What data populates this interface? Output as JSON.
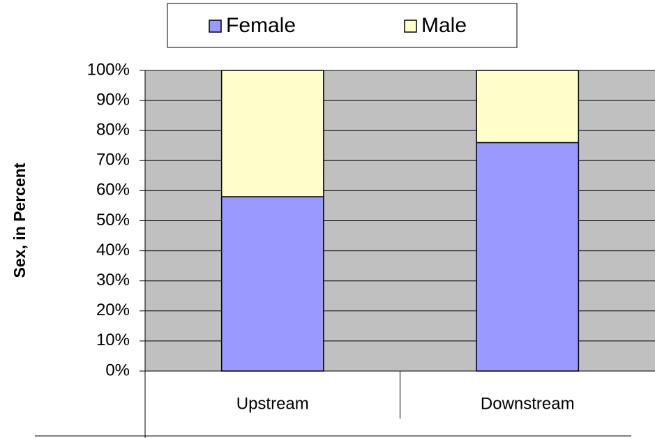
{
  "chart_data": {
    "type": "stacked_bar",
    "y_label": "Sex, in Percent",
    "categories": [
      "Upstream",
      "Downstream"
    ],
    "series": [
      {
        "name": "Female",
        "color": "#9999ff",
        "values": [
          58,
          76
        ]
      },
      {
        "name": "Male",
        "color": "#ffffcc",
        "values": [
          42,
          24
        ]
      }
    ],
    "ylim": [
      0,
      100
    ],
    "yticks": [
      {
        "value": 0,
        "label": "0%"
      },
      {
        "value": 10,
        "label": "10%"
      },
      {
        "value": 20,
        "label": "20%"
      },
      {
        "value": 30,
        "label": "30%"
      },
      {
        "value": 40,
        "label": "40%"
      },
      {
        "value": 50,
        "label": "50%"
      },
      {
        "value": 60,
        "label": "60%"
      },
      {
        "value": 70,
        "label": "70%"
      },
      {
        "value": 80,
        "label": "80%"
      },
      {
        "value": 90,
        "label": "90%"
      },
      {
        "value": 100,
        "label": "100%"
      }
    ],
    "grid": true,
    "legend": "top",
    "plot_background": "#c0c0c0"
  }
}
